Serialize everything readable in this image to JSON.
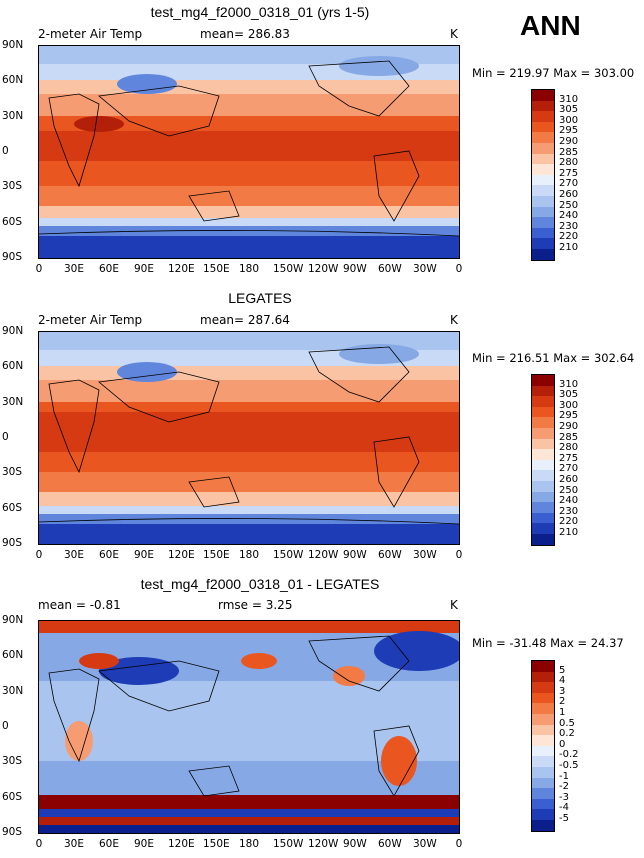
{
  "season": "ANN",
  "panels": [
    {
      "title": "test_mg4_f2000_0318_01 (yrs 1-5)",
      "variable": "2-meter Air Temp",
      "mean_text": "mean= 286.83",
      "units": "K",
      "minmax": "Min = 219.97 Max = 303.00",
      "colorbar_labels": [
        "310",
        "305",
        "300",
        "295",
        "290",
        "285",
        "280",
        "275",
        "270",
        "260",
        "250",
        "240",
        "230",
        "220",
        "210"
      ],
      "colorbar_colors": [
        "#8b0000",
        "#b41f0a",
        "#d63a12",
        "#e9561f",
        "#f27a45",
        "#f69c73",
        "#fac3a4",
        "#fde6d6",
        "#e8f0fb",
        "#c8daf5",
        "#a9c4ee",
        "#86a9e6",
        "#5f86dc",
        "#3a5fd0",
        "#1d3cb5",
        "#0b1f8c"
      ]
    },
    {
      "title": "LEGATES",
      "variable": "2-meter Air Temp",
      "mean_text": "mean= 287.64",
      "units": "K",
      "minmax": "Min = 216.51 Max = 302.64",
      "colorbar_labels": [
        "310",
        "305",
        "300",
        "295",
        "290",
        "285",
        "280",
        "275",
        "270",
        "260",
        "250",
        "240",
        "230",
        "220",
        "210"
      ],
      "colorbar_colors": [
        "#8b0000",
        "#b41f0a",
        "#d63a12",
        "#e9561f",
        "#f27a45",
        "#f69c73",
        "#fac3a4",
        "#fde6d6",
        "#e8f0fb",
        "#c8daf5",
        "#a9c4ee",
        "#86a9e6",
        "#5f86dc",
        "#3a5fd0",
        "#1d3cb5",
        "#0b1f8c"
      ]
    },
    {
      "title": "test_mg4_f2000_0318_01 - LEGATES",
      "mean_text": "mean =  -0.81",
      "rmse_text": "rmse =     3.25",
      "units": "K",
      "minmax": "Min = -31.48 Max =  24.37",
      "colorbar_labels": [
        "5",
        "4",
        "3",
        "2",
        "1",
        "0.5",
        "0.2",
        "0",
        "-0.2",
        "-0.5",
        "-1",
        "-2",
        "-3",
        "-4",
        "-5"
      ],
      "colorbar_colors": [
        "#8b0000",
        "#b41f0a",
        "#d63a12",
        "#e9561f",
        "#f27a45",
        "#f69c73",
        "#fac3a4",
        "#fde6d6",
        "#e8f0fb",
        "#c8daf5",
        "#a9c4ee",
        "#86a9e6",
        "#5f86dc",
        "#3a5fd0",
        "#1d3cb5",
        "#0b1f8c"
      ]
    }
  ],
  "lat_labels": [
    "90N",
    "60N",
    "30N",
    "0",
    "30S",
    "60S",
    "90S"
  ],
  "lon_labels": [
    "0",
    "30E",
    "60E",
    "90E",
    "120E",
    "150E",
    "180",
    "150W",
    "120W",
    "90W",
    "60W",
    "30W",
    "0"
  ]
}
